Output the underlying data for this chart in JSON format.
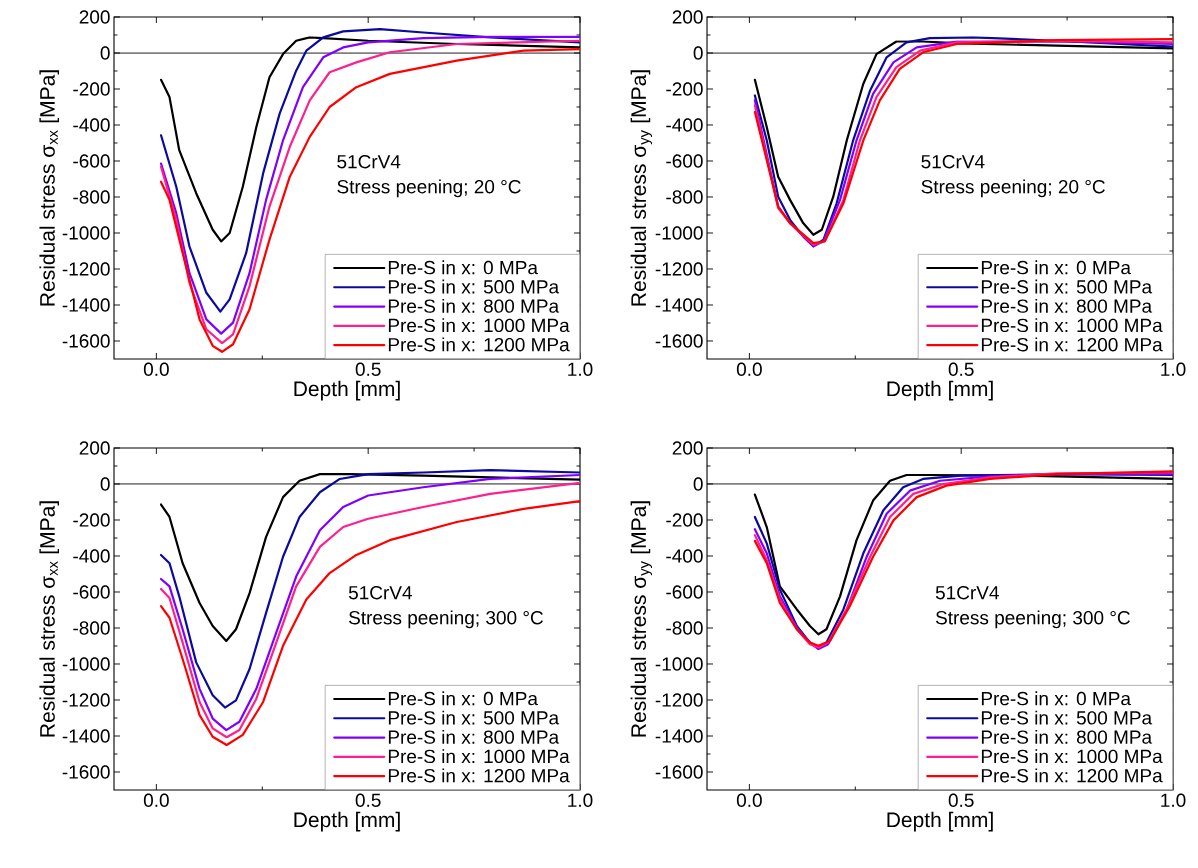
{
  "chart_data": [
    {
      "type": "line",
      "xlabel": "Depth [mm]",
      "ylabel": "Residual stress σ$_{xx}$ [MPa]",
      "xlim": [
        -0.1,
        1.0
      ],
      "ylim": [
        -1700,
        200
      ],
      "xticks": [
        {
          "value": 0,
          "label": "0.0"
        },
        {
          "value": 0.5,
          "label": "0.5"
        },
        {
          "value": 1.0,
          "label": "1.0"
        }
      ],
      "yticks": [
        -1600,
        -1400,
        -1200,
        -1000,
        -800,
        -600,
        -400,
        -200,
        0,
        200
      ],
      "legend": "bottom right",
      "marker": "none",
      "line_style": "solid",
      "annotations": [
        "51CrV4",
        "Stress peening; 20 °C"
      ],
      "ref_lines": [
        {
          "axis": "y",
          "value": 0,
          "color": "#000000"
        }
      ],
      "series": [
        {
          "name": "Pre-S in x: 0 MPa",
          "color": "#000000",
          "x": [
            0.011,
            0.031,
            0.054,
            0.094,
            0.133,
            0.153,
            0.173,
            0.204,
            0.236,
            0.267,
            0.299,
            0.33,
            0.362,
            0.394,
            0.5,
            0.709,
            1.0
          ],
          "values": [
            -149,
            -245,
            -540,
            -779,
            -982,
            -1047,
            -1000,
            -743,
            -411,
            -135,
            -6,
            68,
            87,
            83,
            68,
            50,
            31
          ]
        },
        {
          "name": "Pre-S in x: 500 MPa",
          "color": "#0a0aa0",
          "x": [
            0.011,
            0.047,
            0.078,
            0.118,
            0.151,
            0.173,
            0.212,
            0.252,
            0.291,
            0.33,
            0.354,
            0.394,
            0.441,
            0.528,
            0.63,
            0.788,
            1.0
          ],
          "values": [
            -457,
            -743,
            -1074,
            -1332,
            -1437,
            -1369,
            -1111,
            -669,
            -337,
            -98,
            13,
            87,
            120,
            133,
            114,
            87,
            59
          ]
        },
        {
          "name": "Pre-S in x: 800 MPa",
          "color": "#8000ff",
          "x": [
            0.011,
            0.047,
            0.078,
            0.118,
            0.153,
            0.181,
            0.22,
            0.259,
            0.299,
            0.346,
            0.394,
            0.441,
            0.5,
            0.63,
            0.788,
            1.0
          ],
          "values": [
            -614,
            -890,
            -1222,
            -1480,
            -1559,
            -1498,
            -1222,
            -816,
            -485,
            -190,
            -24,
            31,
            59,
            83,
            90,
            90
          ]
        },
        {
          "name": "Pre-S in x: 1000 MPa",
          "color": "#ff1f8f",
          "x": [
            0.011,
            0.047,
            0.078,
            0.118,
            0.155,
            0.181,
            0.22,
            0.267,
            0.315,
            0.362,
            0.409,
            0.472,
            0.551,
            0.709,
            1.0
          ],
          "values": [
            -632,
            -927,
            -1277,
            -1535,
            -1612,
            -1563,
            -1295,
            -853,
            -521,
            -263,
            -107,
            -52,
            4,
            50,
            68
          ]
        },
        {
          "name": "Pre-S in x: 1200 MPa",
          "color": "#ff0000",
          "x": [
            0.011,
            0.031,
            0.062,
            0.102,
            0.133,
            0.155,
            0.181,
            0.22,
            0.267,
            0.315,
            0.362,
            0.409,
            0.472,
            0.551,
            0.709,
            0.867,
            1.0
          ],
          "values": [
            -715,
            -816,
            -1111,
            -1480,
            -1627,
            -1660,
            -1618,
            -1424,
            -1037,
            -687,
            -466,
            -300,
            -190,
            -116,
            -42,
            13,
            22
          ]
        }
      ]
    },
    {
      "type": "line",
      "xlabel": "Depth [mm]",
      "ylabel": "Residual stress σ$_{yy}$ [MPa]",
      "xlim": [
        -0.1,
        1.0
      ],
      "ylim": [
        -1700,
        200
      ],
      "xticks": [
        {
          "value": 0,
          "label": "0.0"
        },
        {
          "value": 0.5,
          "label": "0.5"
        },
        {
          "value": 1.0,
          "label": "1.0"
        }
      ],
      "yticks": [
        -1600,
        -1400,
        -1200,
        -1000,
        -800,
        -600,
        -400,
        -200,
        0,
        200
      ],
      "legend": "bottom right",
      "marker": "none",
      "line_style": "solid",
      "annotations": [
        "51CrV4",
        "Stress peening; 20 °C"
      ],
      "ref_lines": [
        {
          "axis": "y",
          "value": 0,
          "color": "#000000"
        }
      ],
      "series": [
        {
          "name": "Pre-S in x: 0 MPa",
          "color": "#000000",
          "x": [
            0.013,
            0.041,
            0.068,
            0.096,
            0.127,
            0.151,
            0.171,
            0.198,
            0.23,
            0.269,
            0.3,
            0.347,
            0.41,
            0.5,
            0.725,
            1.0
          ],
          "values": [
            -149,
            -411,
            -687,
            -816,
            -945,
            -1010,
            -982,
            -798,
            -485,
            -171,
            -6,
            64,
            64,
            53,
            41,
            26
          ]
        },
        {
          "name": "Pre-S in x: 500 MPa",
          "color": "#0a0aa0",
          "x": [
            0.013,
            0.041,
            0.068,
            0.096,
            0.127,
            0.151,
            0.175,
            0.206,
            0.245,
            0.285,
            0.324,
            0.371,
            0.426,
            0.528,
            0.725,
            1.0
          ],
          "values": [
            -236,
            -485,
            -798,
            -927,
            -1019,
            -1074,
            -1037,
            -835,
            -485,
            -208,
            -24,
            59,
            83,
            87,
            68,
            35
          ]
        },
        {
          "name": "Pre-S in x: 800 MPa",
          "color": "#8000ff",
          "x": [
            0.013,
            0.068,
            0.096,
            0.151,
            0.175,
            0.214,
            0.253,
            0.292,
            0.34,
            0.395,
            0.49,
            0.725,
            1.0
          ],
          "values": [
            -263,
            -853,
            -945,
            -1074,
            -1046,
            -816,
            -485,
            -227,
            -52,
            31,
            63,
            64,
            50
          ]
        },
        {
          "name": "Pre-S in x: 1000 MPa",
          "color": "#ff1f8f",
          "x": [
            0.013,
            0.068,
            0.096,
            0.151,
            0.178,
            0.222,
            0.261,
            0.3,
            0.347,
            0.403,
            0.49,
            0.725,
            1.0
          ],
          "values": [
            -291,
            -862,
            -945,
            -1065,
            -1046,
            -816,
            -485,
            -245,
            -79,
            13,
            59,
            68,
            59
          ]
        },
        {
          "name": "Pre-S in x: 1200 MPa",
          "color": "#ff0000",
          "x": [
            0.013,
            0.068,
            0.096,
            0.151,
            0.178,
            0.222,
            0.269,
            0.308,
            0.355,
            0.41,
            0.49,
            0.725,
            1.0
          ],
          "values": [
            -328,
            -853,
            -945,
            -1056,
            -1046,
            -835,
            -485,
            -263,
            -88,
            4,
            50,
            72,
            77
          ]
        }
      ]
    },
    {
      "type": "line",
      "xlabel": "Depth [mm]",
      "ylabel": "Residual stress σ$_{xx}$ [MPa]",
      "xlim": [
        -0.1,
        1.0
      ],
      "ylim": [
        -1700,
        200
      ],
      "xticks": [
        {
          "value": 0,
          "label": "0.0"
        },
        {
          "value": 0.5,
          "label": "0.5"
        },
        {
          "value": 1.0,
          "label": "1.0"
        }
      ],
      "yticks": [
        -1600,
        -1400,
        -1200,
        -1000,
        -800,
        -600,
        -400,
        -200,
        0,
        200
      ],
      "legend": "bottom right",
      "marker": "none",
      "line_style": "solid",
      "annotations": [
        "51CrV4",
        "Stress peening; 300 °C"
      ],
      "ref_lines": [
        {
          "axis": "y",
          "value": 0,
          "color": "#000000"
        }
      ],
      "series": [
        {
          "name": "Pre-S in x: 0 MPa",
          "color": "#000000",
          "x": [
            0.011,
            0.031,
            0.062,
            0.102,
            0.133,
            0.165,
            0.188,
            0.22,
            0.259,
            0.299,
            0.338,
            0.386,
            0.457,
            0.63,
            1.0
          ],
          "values": [
            -114,
            -183,
            -440,
            -661,
            -789,
            -872,
            -807,
            -606,
            -294,
            -73,
            18,
            55,
            55,
            46,
            24
          ]
        },
        {
          "name": "Pre-S in x: 500 MPa",
          "color": "#0a0aa0",
          "x": [
            0.011,
            0.031,
            0.054,
            0.094,
            0.133,
            0.162,
            0.188,
            0.22,
            0.259,
            0.299,
            0.338,
            0.386,
            0.433,
            0.5,
            0.63,
            0.788,
            1.0
          ],
          "values": [
            -394,
            -440,
            -624,
            -991,
            -1174,
            -1242,
            -1202,
            -1028,
            -716,
            -404,
            -183,
            -46,
            28,
            55,
            64,
            77,
            64
          ]
        },
        {
          "name": "Pre-S in x: 800 MPa",
          "color": "#8000ff",
          "x": [
            0.011,
            0.031,
            0.062,
            0.102,
            0.133,
            0.165,
            0.196,
            0.236,
            0.283,
            0.33,
            0.386,
            0.441,
            0.5,
            0.63,
            0.788,
            1.0
          ],
          "values": [
            -528,
            -569,
            -807,
            -1138,
            -1303,
            -1367,
            -1321,
            -1138,
            -826,
            -514,
            -257,
            -128,
            -64,
            -18,
            28,
            50
          ]
        },
        {
          "name": "Pre-S in x: 1000 MPa",
          "color": "#ff1f8f",
          "x": [
            0.011,
            0.031,
            0.062,
            0.102,
            0.133,
            0.166,
            0.196,
            0.236,
            0.283,
            0.33,
            0.386,
            0.441,
            0.5,
            0.63,
            0.788,
            1.0
          ],
          "values": [
            -583,
            -633,
            -881,
            -1211,
            -1358,
            -1407,
            -1367,
            -1193,
            -881,
            -569,
            -349,
            -239,
            -193,
            -128,
            -55,
            6
          ]
        },
        {
          "name": "Pre-S in x: 1200 MPa",
          "color": "#ff0000",
          "x": [
            0.011,
            0.031,
            0.062,
            0.102,
            0.133,
            0.166,
            0.204,
            0.252,
            0.299,
            0.354,
            0.409,
            0.472,
            0.551,
            0.709,
            0.867,
            1.0
          ],
          "values": [
            -679,
            -743,
            -972,
            -1284,
            -1404,
            -1450,
            -1394,
            -1211,
            -899,
            -642,
            -495,
            -394,
            -312,
            -211,
            -138,
            -95
          ]
        }
      ]
    },
    {
      "type": "line",
      "xlabel": "Depth [mm]",
      "ylabel": "Residual stress σ$_{yy}$ [MPa]",
      "xlim": [
        -0.1,
        1.0
      ],
      "ylim": [
        -1700,
        200
      ],
      "xticks": [
        {
          "value": 0,
          "label": "0.0"
        },
        {
          "value": 0.5,
          "label": "0.5"
        },
        {
          "value": 1.0,
          "label": "1.0"
        }
      ],
      "yticks": [
        -1600,
        -1400,
        -1200,
        -1000,
        -800,
        -600,
        -400,
        -200,
        0,
        200
      ],
      "legend": "bottom right",
      "marker": "none",
      "line_style": "solid",
      "annotations": [
        "51CrV4",
        "Stress peening; 300 °C"
      ],
      "ref_lines": [
        {
          "axis": "y",
          "value": 0,
          "color": "#000000"
        }
      ],
      "series": [
        {
          "name": "Pre-S in x: 0 MPa",
          "color": "#000000",
          "x": [
            0.013,
            0.041,
            0.072,
            0.112,
            0.143,
            0.163,
            0.182,
            0.214,
            0.253,
            0.292,
            0.332,
            0.371,
            0.426,
            0.646,
            1.0
          ],
          "values": [
            -59,
            -239,
            -569,
            -697,
            -789,
            -835,
            -807,
            -624,
            -312,
            -92,
            18,
            50,
            50,
            46,
            28
          ]
        },
        {
          "name": "Pre-S in x: 500 MPa",
          "color": "#0a0aa0",
          "x": [
            0.013,
            0.041,
            0.072,
            0.112,
            0.143,
            0.163,
            0.182,
            0.222,
            0.269,
            0.316,
            0.363,
            0.41,
            0.5,
            0.725,
            1.0
          ],
          "values": [
            -183,
            -330,
            -587,
            -789,
            -881,
            -908,
            -881,
            -697,
            -385,
            -147,
            -18,
            28,
            46,
            55,
            50
          ]
        },
        {
          "name": "Pre-S in x: 800 MPa",
          "color": "#8000ff",
          "x": [
            0.013,
            0.041,
            0.072,
            0.112,
            0.143,
            0.163,
            0.186,
            0.23,
            0.277,
            0.324,
            0.379,
            0.45,
            0.568,
            0.725,
            1.0
          ],
          "values": [
            -251,
            -385,
            -624,
            -798,
            -881,
            -917,
            -890,
            -697,
            -404,
            -165,
            -37,
            18,
            42,
            55,
            55
          ]
        },
        {
          "name": "Pre-S in x: 1000 MPa",
          "color": "#ff1f8f",
          "x": [
            0.013,
            0.041,
            0.072,
            0.112,
            0.143,
            0.163,
            0.186,
            0.233,
            0.285,
            0.332,
            0.387,
            0.458,
            0.568,
            0.725,
            1.0
          ],
          "values": [
            -284,
            -422,
            -642,
            -807,
            -890,
            -908,
            -881,
            -679,
            -404,
            -183,
            -55,
            0,
            37,
            59,
            64
          ]
        },
        {
          "name": "Pre-S in x: 1200 MPa",
          "color": "#ff0000",
          "x": [
            0.013,
            0.041,
            0.072,
            0.112,
            0.143,
            0.163,
            0.19,
            0.237,
            0.292,
            0.34,
            0.395,
            0.465,
            0.568,
            0.725,
            1.0
          ],
          "values": [
            -316,
            -440,
            -661,
            -807,
            -881,
            -899,
            -872,
            -679,
            -404,
            -202,
            -73,
            -9,
            28,
            55,
            70
          ]
        }
      ]
    }
  ]
}
